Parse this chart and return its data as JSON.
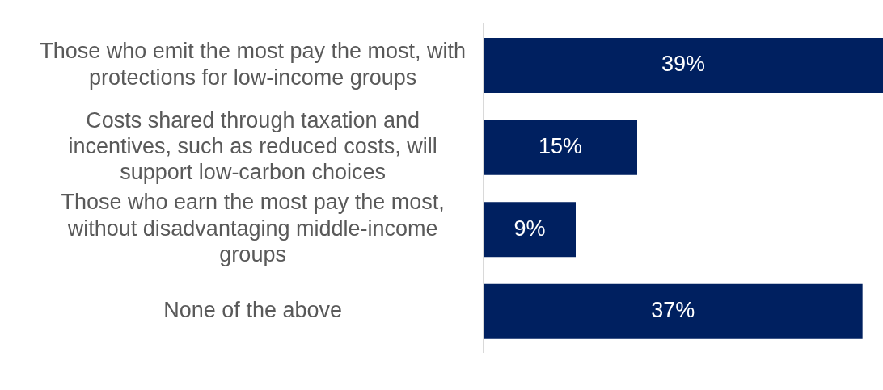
{
  "chart_data": {
    "type": "bar",
    "orientation": "horizontal",
    "categories": [
      "Those who emit the most pay the most, with protections for low-income groups",
      "Costs shared through taxation and incentives, such as reduced costs, will support low-carbon choices",
      "Those who earn the most pay the most, without disadvantaging middle-income groups",
      "None of the above"
    ],
    "values": [
      39,
      15,
      9,
      37
    ],
    "value_labels": [
      "39%",
      "15%",
      "9%",
      "37%"
    ],
    "color": "#002060",
    "grid": false,
    "legend": false
  }
}
